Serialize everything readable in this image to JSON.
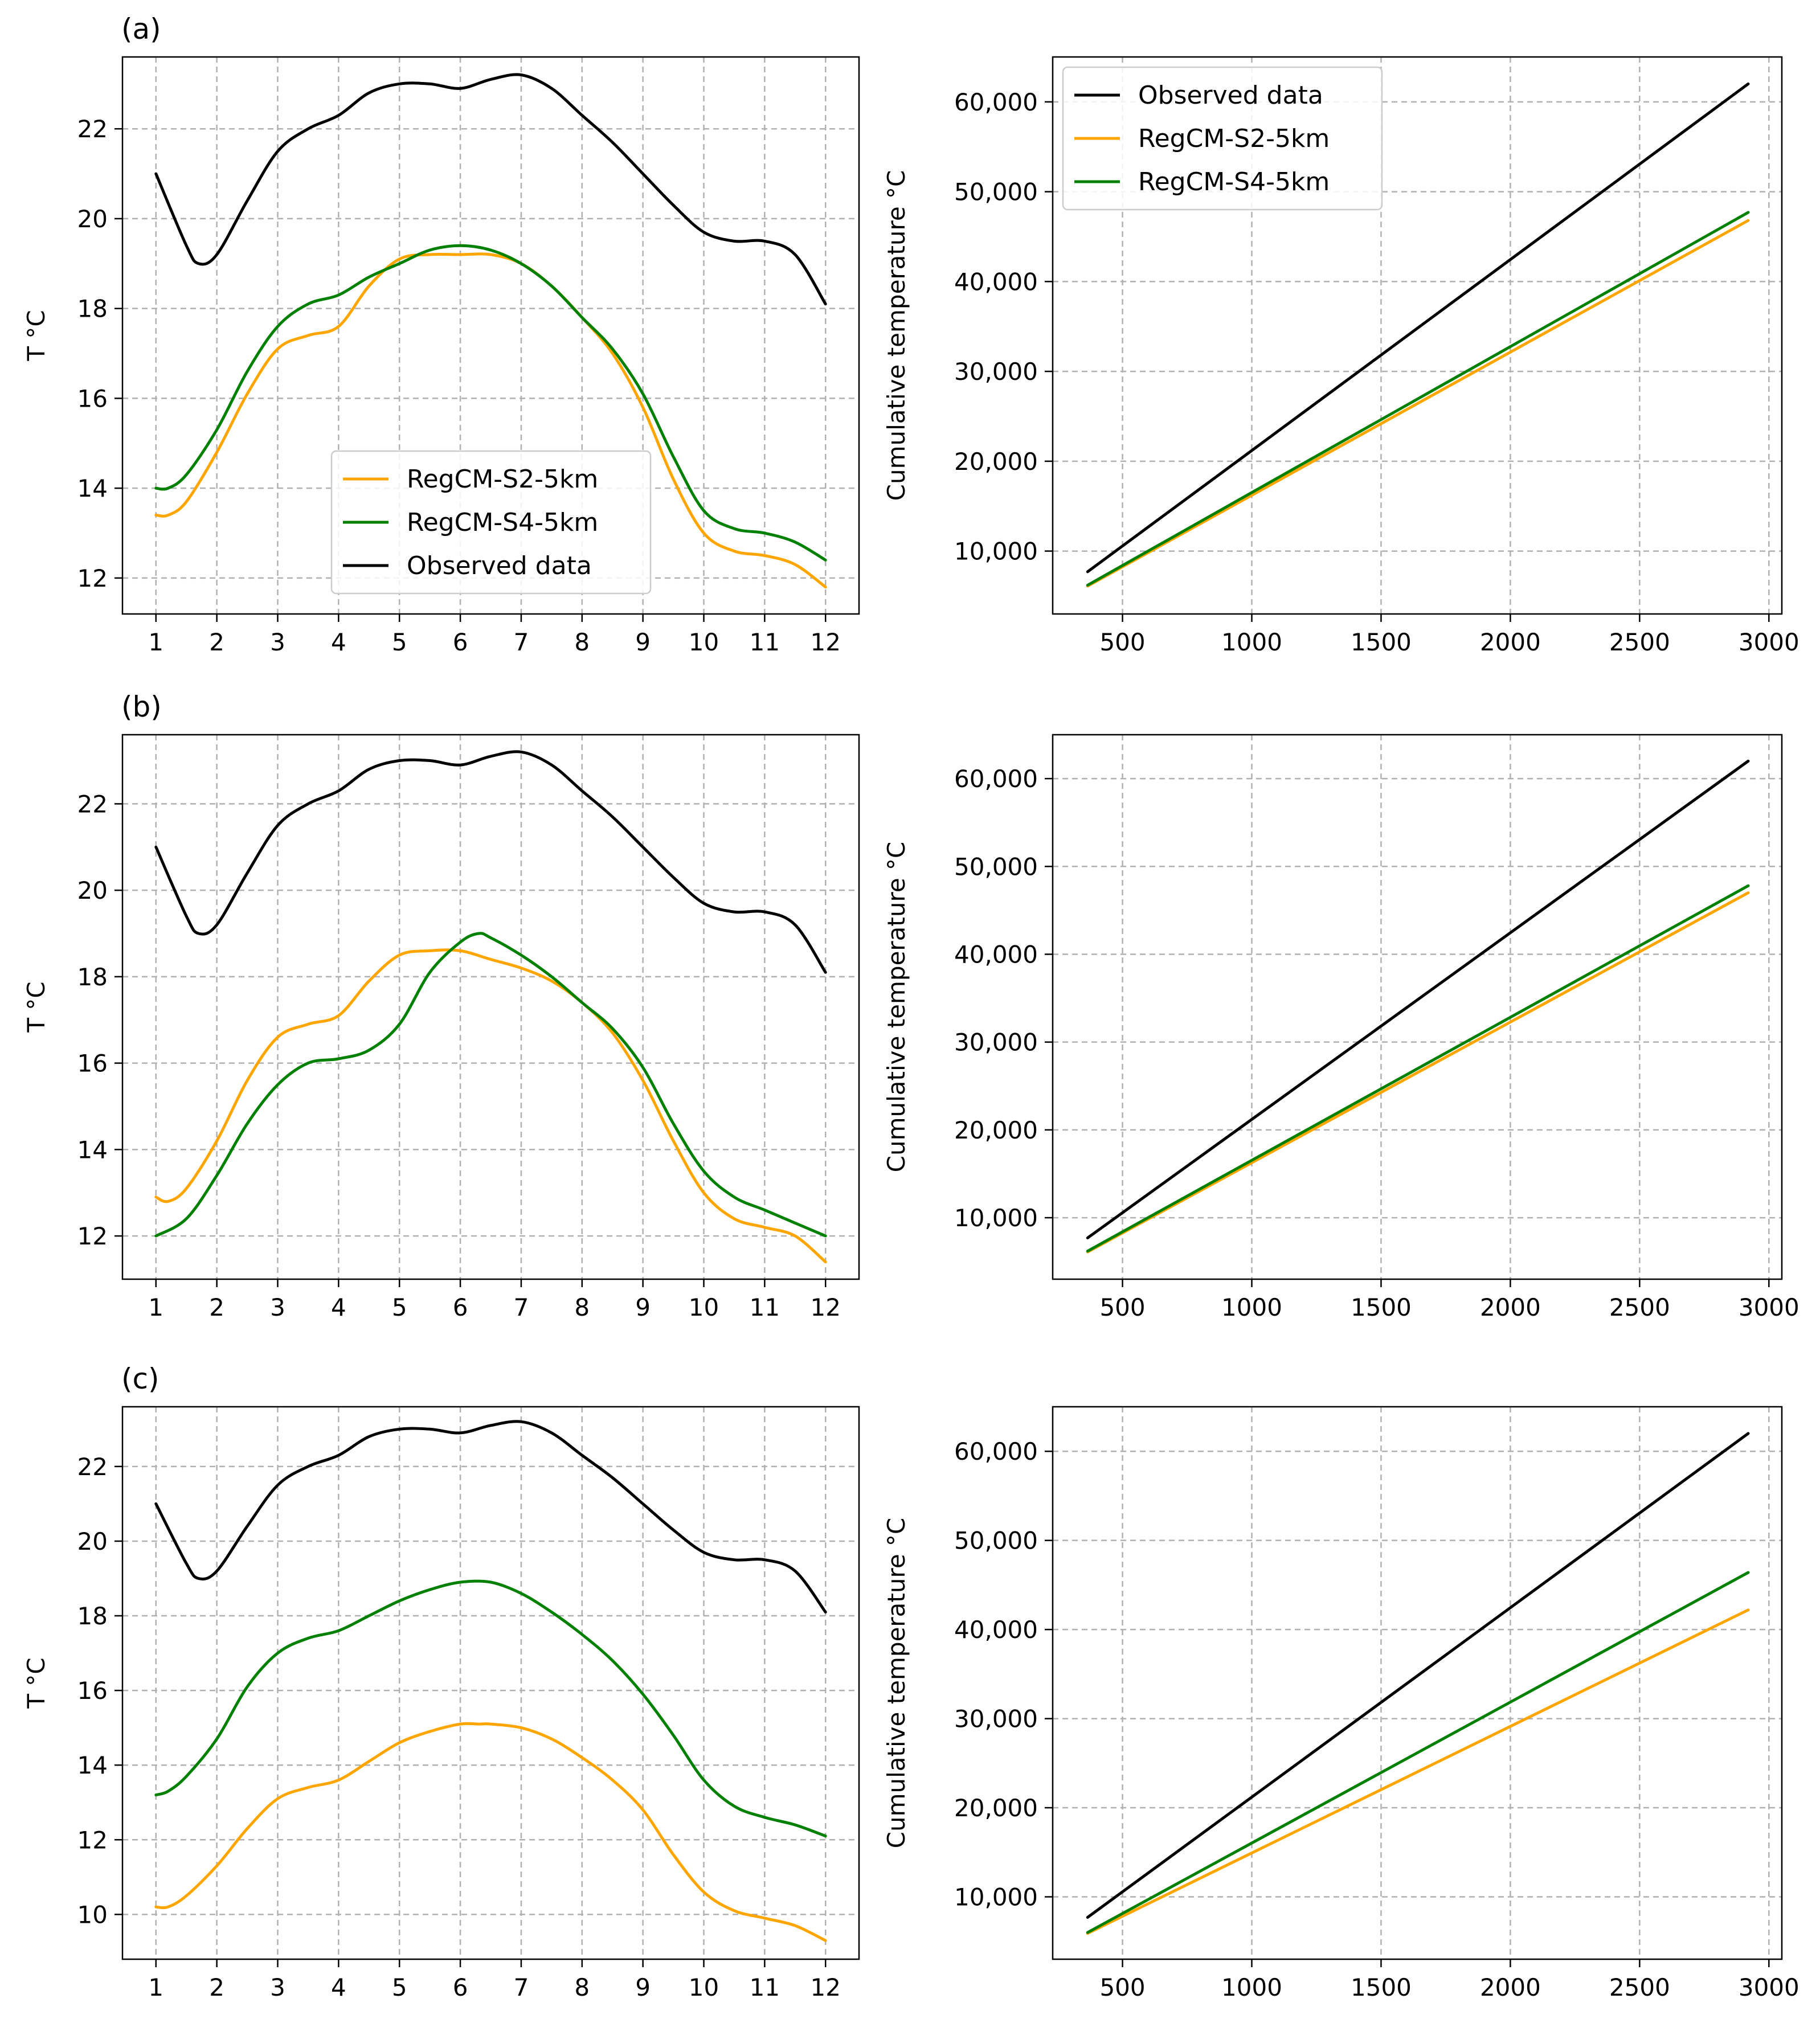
{
  "colors": {
    "observed": "#000000",
    "s2": "#FFA500",
    "s4": "#008000"
  },
  "chart_data": [
    {
      "id": "a-monthly",
      "type": "line",
      "panel_label": "(a)",
      "xlabel": "",
      "ylabel": "T °C",
      "xlim": [
        0.45,
        12.55
      ],
      "ylim": [
        11.2,
        23.6
      ],
      "xticks": [
        1,
        2,
        3,
        4,
        5,
        6,
        7,
        8,
        9,
        10,
        11,
        12
      ],
      "xtick_labels": [
        "1",
        "2",
        "3",
        "4",
        "5",
        "6",
        "7",
        "8",
        "9",
        "10",
        "11",
        "12"
      ],
      "yticks": [
        12,
        14,
        16,
        18,
        20,
        22
      ],
      "ytick_labels": [
        "12",
        "14",
        "16",
        "18",
        "20",
        "22"
      ],
      "legend_position": "lower-center",
      "legend": [
        {
          "name": "RegCM-S2-5km",
          "color_key": "s2"
        },
        {
          "name": "RegCM-S4-5km",
          "color_key": "s4"
        },
        {
          "name": "Observed data",
          "color_key": "observed"
        }
      ],
      "series": [
        {
          "name": "Observed data",
          "color_key": "observed",
          "x": [
            1,
            1.5,
            1.7,
            2,
            2.5,
            3,
            3.5,
            4,
            4.5,
            5,
            5.5,
            6,
            6.5,
            7,
            7.5,
            8,
            8.5,
            9,
            9.5,
            10,
            10.5,
            11,
            11.5,
            12
          ],
          "values": [
            21.0,
            19.4,
            19.0,
            19.2,
            20.4,
            21.5,
            22.0,
            22.3,
            22.8,
            23.0,
            23.0,
            22.9,
            23.1,
            23.2,
            22.9,
            22.3,
            21.7,
            21.0,
            20.3,
            19.7,
            19.5,
            19.5,
            19.2,
            18.1
          ]
        },
        {
          "name": "RegCM-S2-5km",
          "color_key": "s2",
          "x": [
            1,
            1.2,
            1.5,
            2,
            2.5,
            3,
            3.5,
            4,
            4.5,
            5,
            5.5,
            6,
            6.5,
            7,
            7.5,
            8,
            8.5,
            9,
            9.5,
            10,
            10.5,
            11,
            11.5,
            12
          ],
          "values": [
            13.4,
            13.4,
            13.7,
            14.8,
            16.1,
            17.1,
            17.4,
            17.6,
            18.5,
            19.1,
            19.2,
            19.2,
            19.2,
            19.0,
            18.5,
            17.8,
            17.0,
            15.8,
            14.2,
            13.0,
            12.6,
            12.5,
            12.3,
            11.8
          ]
        },
        {
          "name": "RegCM-S4-5km",
          "color_key": "s4",
          "x": [
            1,
            1.2,
            1.5,
            2,
            2.5,
            3,
            3.5,
            4,
            4.5,
            5,
            5.5,
            6,
            6.5,
            7,
            7.5,
            8,
            8.5,
            9,
            9.5,
            10,
            10.5,
            11,
            11.5,
            12
          ],
          "values": [
            14.0,
            14.0,
            14.3,
            15.3,
            16.6,
            17.6,
            18.1,
            18.3,
            18.7,
            19.0,
            19.3,
            19.4,
            19.3,
            19.0,
            18.5,
            17.8,
            17.1,
            16.1,
            14.7,
            13.5,
            13.1,
            13.0,
            12.8,
            12.4
          ]
        }
      ]
    },
    {
      "id": "a-cumulative",
      "type": "line",
      "panel_label": "",
      "xlabel": "",
      "ylabel": "Cumulative temperature °C",
      "xlim": [
        230,
        3050
      ],
      "ylim": [
        3000,
        65000
      ],
      "xticks": [
        500,
        1000,
        1500,
        2000,
        2500,
        3000
      ],
      "xtick_labels": [
        "500",
        "1000",
        "1500",
        "2000",
        "2500",
        "3000"
      ],
      "yticks": [
        10000,
        20000,
        30000,
        40000,
        50000,
        60000
      ],
      "ytick_labels": [
        "10,000",
        "20,000",
        "30,000",
        "40,000",
        "50,000",
        "60,000"
      ],
      "legend_position": "upper-left",
      "legend": [
        {
          "name": "Observed data",
          "color_key": "observed"
        },
        {
          "name": "RegCM-S2-5km",
          "color_key": "s2"
        },
        {
          "name": "RegCM-S4-5km",
          "color_key": "s4"
        }
      ],
      "series": [
        {
          "name": "Observed data",
          "color_key": "observed",
          "x": [
            365,
            2920
          ],
          "values": [
            7700,
            62000
          ]
        },
        {
          "name": "RegCM-S2-5km",
          "color_key": "s2",
          "x": [
            365,
            2920
          ],
          "values": [
            6100,
            46800
          ]
        },
        {
          "name": "RegCM-S4-5km",
          "color_key": "s4",
          "x": [
            365,
            2920
          ],
          "values": [
            6200,
            47700
          ]
        }
      ]
    },
    {
      "id": "b-monthly",
      "type": "line",
      "panel_label": "(b)",
      "xlabel": "",
      "ylabel": "T °C",
      "xlim": [
        0.45,
        12.55
      ],
      "ylim": [
        11.0,
        23.6
      ],
      "xticks": [
        1,
        2,
        3,
        4,
        5,
        6,
        7,
        8,
        9,
        10,
        11,
        12
      ],
      "xtick_labels": [
        "1",
        "2",
        "3",
        "4",
        "5",
        "6",
        "7",
        "8",
        "9",
        "10",
        "11",
        "12"
      ],
      "yticks": [
        12,
        14,
        16,
        18,
        20,
        22
      ],
      "ytick_labels": [
        "12",
        "14",
        "16",
        "18",
        "20",
        "22"
      ],
      "legend_position": "none",
      "legend": [],
      "series": [
        {
          "name": "Observed data",
          "color_key": "observed",
          "x": [
            1,
            1.5,
            1.7,
            2,
            2.5,
            3,
            3.5,
            4,
            4.5,
            5,
            5.5,
            6,
            6.5,
            7,
            7.5,
            8,
            8.5,
            9,
            9.5,
            10,
            10.5,
            11,
            11.5,
            12
          ],
          "values": [
            21.0,
            19.4,
            19.0,
            19.2,
            20.4,
            21.5,
            22.0,
            22.3,
            22.8,
            23.0,
            23.0,
            22.9,
            23.1,
            23.2,
            22.9,
            22.3,
            21.7,
            21.0,
            20.3,
            19.7,
            19.5,
            19.5,
            19.2,
            18.1
          ]
        },
        {
          "name": "RegCM-S2-5km",
          "color_key": "s2",
          "x": [
            1,
            1.2,
            1.5,
            2,
            2.5,
            3,
            3.5,
            4,
            4.5,
            5,
            5.5,
            6,
            6.5,
            7,
            7.5,
            8,
            8.5,
            9,
            9.5,
            10,
            10.5,
            11,
            11.5,
            12
          ],
          "values": [
            12.9,
            12.8,
            13.1,
            14.2,
            15.6,
            16.6,
            16.9,
            17.1,
            17.9,
            18.5,
            18.6,
            18.6,
            18.4,
            18.2,
            17.9,
            17.4,
            16.7,
            15.6,
            14.2,
            13.0,
            12.4,
            12.2,
            12.0,
            11.4
          ]
        },
        {
          "name": "RegCM-S4-5km",
          "color_key": "s4",
          "x": [
            1,
            1.5,
            2,
            2.5,
            3,
            3.5,
            4,
            4.5,
            5,
            5.5,
            6,
            6.3,
            6.5,
            7,
            7.5,
            8,
            8.5,
            9,
            9.5,
            10,
            10.5,
            11,
            11.5,
            12
          ],
          "values": [
            12.0,
            12.4,
            13.4,
            14.6,
            15.5,
            16.0,
            16.1,
            16.3,
            16.9,
            18.1,
            18.8,
            19.0,
            18.9,
            18.5,
            18.0,
            17.4,
            16.8,
            15.9,
            14.6,
            13.5,
            12.9,
            12.6,
            12.3,
            12.0
          ]
        }
      ]
    },
    {
      "id": "b-cumulative",
      "type": "line",
      "panel_label": "",
      "xlabel": "",
      "ylabel": "Cumulative temperature °C",
      "xlim": [
        230,
        3050
      ],
      "ylim": [
        3000,
        65000
      ],
      "xticks": [
        500,
        1000,
        1500,
        2000,
        2500,
        3000
      ],
      "xtick_labels": [
        "500",
        "1000",
        "1500",
        "2000",
        "2500",
        "3000"
      ],
      "yticks": [
        10000,
        20000,
        30000,
        40000,
        50000,
        60000
      ],
      "ytick_labels": [
        "10,000",
        "20,000",
        "30,000",
        "40,000",
        "50,000",
        "60,000"
      ],
      "legend_position": "none",
      "legend": [],
      "series": [
        {
          "name": "Observed data",
          "color_key": "observed",
          "x": [
            365,
            2920
          ],
          "values": [
            7700,
            62000
          ]
        },
        {
          "name": "RegCM-S2-5km",
          "color_key": "s2",
          "x": [
            365,
            2920
          ],
          "values": [
            6100,
            47000
          ]
        },
        {
          "name": "RegCM-S4-5km",
          "color_key": "s4",
          "x": [
            365,
            2920
          ],
          "values": [
            6200,
            47800
          ]
        }
      ]
    },
    {
      "id": "c-monthly",
      "type": "line",
      "panel_label": "(c)",
      "xlabel": "",
      "ylabel": "T °C",
      "xlim": [
        0.45,
        12.55
      ],
      "ylim": [
        8.8,
        23.6
      ],
      "xticks": [
        1,
        2,
        3,
        4,
        5,
        6,
        7,
        8,
        9,
        10,
        11,
        12
      ],
      "xtick_labels": [
        "1",
        "2",
        "3",
        "4",
        "5",
        "6",
        "7",
        "8",
        "9",
        "10",
        "11",
        "12"
      ],
      "yticks": [
        10,
        12,
        14,
        16,
        18,
        20,
        22
      ],
      "ytick_labels": [
        "10",
        "12",
        "14",
        "16",
        "18",
        "20",
        "22"
      ],
      "legend_position": "none",
      "legend": [],
      "series": [
        {
          "name": "Observed data",
          "color_key": "observed",
          "x": [
            1,
            1.5,
            1.7,
            2,
            2.5,
            3,
            3.5,
            4,
            4.5,
            5,
            5.5,
            6,
            6.5,
            7,
            7.5,
            8,
            8.5,
            9,
            9.5,
            10,
            10.5,
            11,
            11.5,
            12
          ],
          "values": [
            21.0,
            19.4,
            19.0,
            19.2,
            20.4,
            21.5,
            22.0,
            22.3,
            22.8,
            23.0,
            23.0,
            22.9,
            23.1,
            23.2,
            22.9,
            22.3,
            21.7,
            21.0,
            20.3,
            19.7,
            19.5,
            19.5,
            19.2,
            18.1
          ]
        },
        {
          "name": "RegCM-S2-5km",
          "color_key": "s2",
          "x": [
            1,
            1.2,
            1.5,
            2,
            2.5,
            3,
            3.5,
            4,
            4.5,
            5,
            5.5,
            6,
            6.3,
            6.5,
            7,
            7.5,
            8,
            8.5,
            9,
            9.5,
            10,
            10.5,
            11,
            11.5,
            12
          ],
          "values": [
            10.2,
            10.2,
            10.5,
            11.3,
            12.3,
            13.1,
            13.4,
            13.6,
            14.1,
            14.6,
            14.9,
            15.1,
            15.1,
            15.1,
            15.0,
            14.7,
            14.2,
            13.6,
            12.8,
            11.6,
            10.6,
            10.1,
            9.9,
            9.7,
            9.3
          ]
        },
        {
          "name": "RegCM-S4-5km",
          "color_key": "s4",
          "x": [
            1,
            1.2,
            1.5,
            2,
            2.5,
            3,
            3.5,
            4,
            4.5,
            5,
            5.5,
            6,
            6.5,
            7,
            7.5,
            8,
            8.5,
            9,
            9.5,
            10,
            10.5,
            11,
            11.5,
            12
          ],
          "values": [
            13.2,
            13.3,
            13.7,
            14.7,
            16.1,
            17.0,
            17.4,
            17.6,
            18.0,
            18.4,
            18.7,
            18.9,
            18.9,
            18.6,
            18.1,
            17.5,
            16.8,
            15.9,
            14.8,
            13.6,
            12.9,
            12.6,
            12.4,
            12.1
          ]
        }
      ]
    },
    {
      "id": "c-cumulative",
      "type": "line",
      "panel_label": "",
      "xlabel": "",
      "ylabel": "Cumulative temperature °C",
      "xlim": [
        230,
        3050
      ],
      "ylim": [
        3000,
        65000
      ],
      "xticks": [
        500,
        1000,
        1500,
        2000,
        2500,
        3000
      ],
      "xtick_labels": [
        "500",
        "1000",
        "1500",
        "2000",
        "2500",
        "3000"
      ],
      "yticks": [
        10000,
        20000,
        30000,
        40000,
        50000,
        60000
      ],
      "ytick_labels": [
        "10,000",
        "20,000",
        "30,000",
        "40,000",
        "50,000",
        "60,000"
      ],
      "legend_position": "none",
      "legend": [],
      "series": [
        {
          "name": "Observed data",
          "color_key": "observed",
          "x": [
            365,
            2920
          ],
          "values": [
            7700,
            62000
          ]
        },
        {
          "name": "RegCM-S2-5km",
          "color_key": "s2",
          "x": [
            365,
            2920
          ],
          "values": [
            5900,
            42200
          ]
        },
        {
          "name": "RegCM-S4-5km",
          "color_key": "s4",
          "x": [
            365,
            2920
          ],
          "values": [
            6000,
            46400
          ]
        }
      ]
    }
  ]
}
